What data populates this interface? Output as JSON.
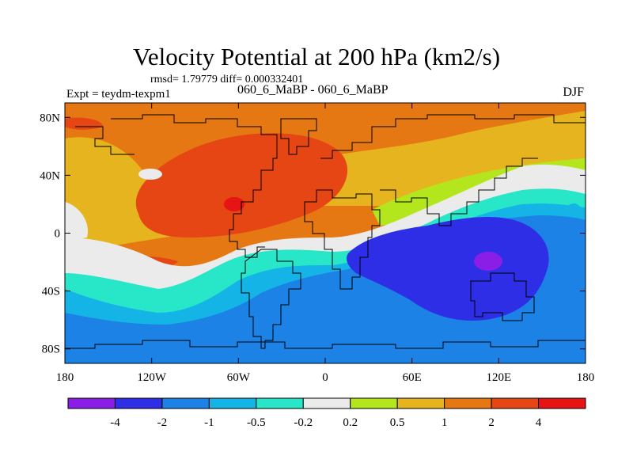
{
  "chart_data": {
    "type": "heatmap",
    "title": "Velocity Potential at 200 hPa (km2/s)",
    "stats_text": "rmsd= 1.79779 diff= 0.000332401",
    "left_label": "Expt = teydm-texpm1",
    "center_label": "060_6_MaBP - 060_6_MaBP",
    "right_label": "DJF",
    "xlim": [
      -180,
      180
    ],
    "ylim": [
      -90,
      90
    ],
    "x_ticks": [
      {
        "value": -180,
        "label": "180"
      },
      {
        "value": -120,
        "label": "120W"
      },
      {
        "value": -60,
        "label": "60W"
      },
      {
        "value": 0,
        "label": "0"
      },
      {
        "value": 60,
        "label": "60E"
      },
      {
        "value": 120,
        "label": "120E"
      },
      {
        "value": 180,
        "label": "180"
      }
    ],
    "y_ticks": [
      {
        "value": 80,
        "label": "80N"
      },
      {
        "value": 40,
        "label": "40N"
      },
      {
        "value": 0,
        "label": "0"
      },
      {
        "value": -40,
        "label": "40S"
      },
      {
        "value": -80,
        "label": "80S"
      }
    ],
    "colorbar": {
      "levels": [
        "-4",
        "-2",
        "-1",
        "-0.5",
        "-0.2",
        "0.2",
        "0.5",
        "1",
        "2",
        "4"
      ],
      "colors": [
        "#8a1ee6",
        "#2e2ee6",
        "#1c82e6",
        "#14b4e6",
        "#28e6c8",
        "#ebebeb",
        "#b4e61e",
        "#e6b41e",
        "#e67814",
        "#e64614",
        "#e61414"
      ]
    }
  }
}
